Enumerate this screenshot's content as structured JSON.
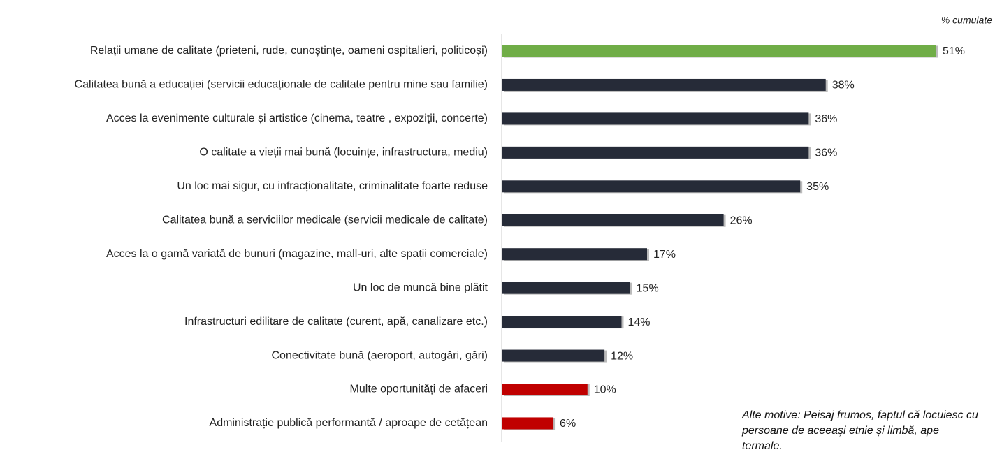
{
  "chart_data": {
    "type": "barh",
    "subtitle": "% cumulate",
    "annotation": "Alte motive: Peisaj frumos, faptul că locuiesc cu persoane de aceeași etnie și limbă, ape termale.",
    "categories": [
      "Relații umane de calitate (prieteni, rude, cunoștințe, oameni ospitalieri, politicoși)",
      "Calitatea bună a educației (servicii educaționale de calitate pentru mine sau familie)",
      "Acces la evenimente culturale și artistice (cinema, teatre , expoziții, concerte)",
      "O calitate a vieții mai bună (locuințe, infrastructura, mediu)",
      "Un loc mai sigur, cu infracționalitate, criminalitate foarte reduse",
      "Calitatea bună a serviciilor medicale (servicii medicale de calitate)",
      "Acces la o gamă variată de bunuri (magazine, mall-uri, alte spații comerciale)",
      "Un loc de muncă bine plătit",
      "Infrastructuri edilitare de calitate (curent, apă, canalizare etc.)",
      "Conectivitate bună (aeroport, autogări, gări)",
      "Multe oportunități de afaceri",
      "Administrație publică performantă / aproape de cetățean"
    ],
    "values": [
      51,
      38,
      36,
      36,
      35,
      26,
      17,
      15,
      14,
      12,
      10,
      6
    ],
    "value_labels": [
      "51%",
      "38%",
      "36%",
      "36%",
      "35%",
      "26%",
      "17%",
      "15%",
      "14%",
      "12%",
      "10%",
      "6%"
    ],
    "colors": [
      "#70ad47",
      "#262b38",
      "#262b38",
      "#262b38",
      "#262b38",
      "#262b38",
      "#262b38",
      "#262b38",
      "#262b38",
      "#262b38",
      "#c00000",
      "#c00000"
    ],
    "xlim": [
      0,
      51
    ]
  }
}
